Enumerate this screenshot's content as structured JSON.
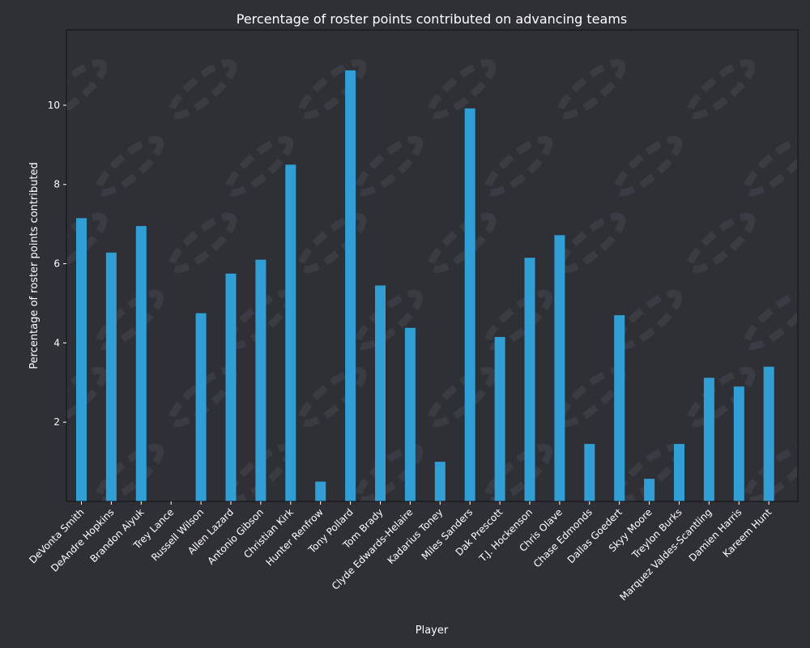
{
  "chart_data": {
    "type": "bar",
    "title": "Percentage of roster points contributed on advancing teams",
    "xlabel": "Player",
    "ylabel": "Percentage of roster points contributed",
    "ylim": [
      0,
      11.9
    ],
    "yticks": [
      2,
      4,
      6,
      8,
      10
    ],
    "categories": [
      "DeVonta Smith",
      "DeAndre Hopkins",
      "Brandon Aiyuk",
      "Trey Lance",
      "Russell Wilson",
      "Allen Lazard",
      "Antonio Gibson",
      "Christian Kirk",
      "Hunter Renfrow",
      "Tony Pollard",
      "Tom Brady",
      "Clyde Edwards-Helaire",
      "Kadarius Toney",
      "Miles Sanders",
      "Dak Prescott",
      "T.J. Hockenson",
      "Chris Olave",
      "Chase Edmonds",
      "Dallas Goedert",
      "Skyy Moore",
      "Treylon Burks",
      "Marquez Valdes-Scantling",
      "Damien Harris",
      "Kareem Hunt"
    ],
    "values": [
      7.15,
      6.28,
      6.95,
      0.0,
      4.75,
      5.75,
      6.1,
      8.5,
      0.5,
      10.88,
      5.45,
      4.38,
      1.0,
      9.92,
      4.15,
      6.15,
      6.72,
      1.45,
      4.7,
      0.57,
      1.45,
      3.12,
      2.9,
      3.4
    ],
    "grid": false,
    "legend": "none",
    "colors": {
      "bar": "#2f9fd6",
      "background": "#2f3036",
      "text": "#ffffff"
    }
  }
}
